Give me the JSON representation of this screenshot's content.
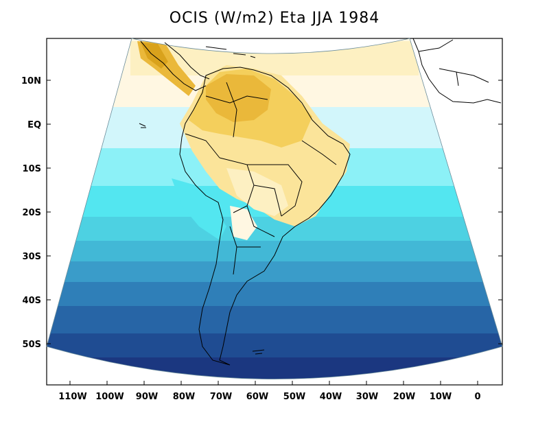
{
  "title": "OCIS (W/m2) Eta JJA 1984",
  "lat_labels": [
    "10N",
    "EQ",
    "10S",
    "20S",
    "30S",
    "40S",
    "50S"
  ],
  "lon_labels": [
    "110W",
    "100W",
    "90W",
    "80W",
    "70W",
    "60W",
    "50W",
    "40W",
    "30W",
    "20W",
    "10W",
    "0"
  ],
  "colors": {
    "dark_orange": "#d9a21c",
    "orange": "#eab83a",
    "gold": "#f4cf5c",
    "light_yellow": "#fbe49a",
    "pale_yellow": "#fdf0c2",
    "cream": "#fff7e2",
    "pale_cyan": "#d2f6fb",
    "light_cyan": "#8cf1f7",
    "cyan": "#53e6f0",
    "aqua": "#4dd1e2",
    "teal_blue": "#42b8d6",
    "steel_blue": "#3a9cc9",
    "mid_blue": "#2f7fb8",
    "blue": "#2765a6",
    "deep_blue": "#1f4c92",
    "navy": "#1b3780"
  }
}
